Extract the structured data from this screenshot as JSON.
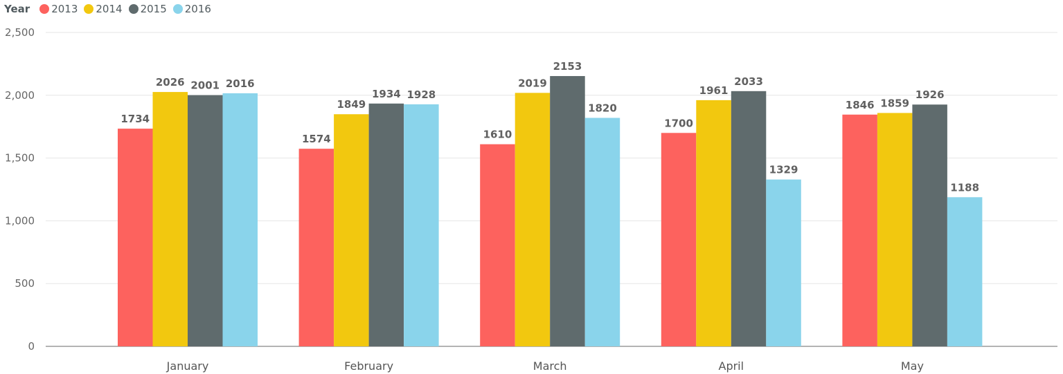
{
  "chart_data": {
    "type": "bar",
    "legend_title": "Year",
    "legend_position": "top-left",
    "categories": [
      "January",
      "February",
      "March",
      "April",
      "May"
    ],
    "series": [
      {
        "name": "2013",
        "color": "#fd625e",
        "values": [
          1734,
          1574,
          1610,
          1700,
          1846
        ]
      },
      {
        "name": "2014",
        "color": "#f2c80f",
        "values": [
          2026,
          1849,
          2019,
          1961,
          1859
        ]
      },
      {
        "name": "2015",
        "color": "#5f6b6d",
        "values": [
          2001,
          1934,
          2153,
          2033,
          1926
        ]
      },
      {
        "name": "2016",
        "color": "#8ad4eb",
        "values": [
          2016,
          1928,
          1820,
          1329,
          1188
        ]
      }
    ],
    "ylim": [
      0,
      2500
    ],
    "yticks": [
      0,
      500,
      1000,
      1500,
      2000,
      2500
    ],
    "ytick_labels": [
      "0",
      "500",
      "1,000",
      "1,500",
      "2,000",
      "2,500"
    ],
    "grid": true,
    "xlabel": "",
    "ylabel": "",
    "title": ""
  }
}
